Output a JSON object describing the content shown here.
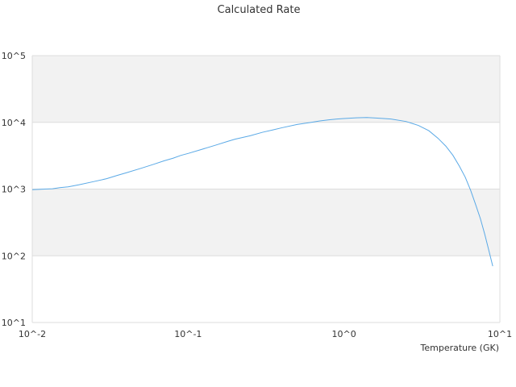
{
  "chart_data": {
    "type": "line",
    "title": "Calculated Rate",
    "xlabel": "Temperature (GK)",
    "ylabel": "",
    "x_scale": "log",
    "y_scale": "log",
    "xlim": [
      0.01,
      10
    ],
    "ylim": [
      10,
      100000
    ],
    "x_tick_labels": [
      "10^-2",
      "10^-1",
      "10^0",
      "10^1"
    ],
    "y_tick_labels": [
      "10^5",
      "10^4",
      "10^3",
      "10^2",
      "10^1"
    ],
    "band_fill": "#f2f2f2",
    "line_color": "#5aa9e6",
    "grid": true,
    "legend": "none",
    "series": [
      {
        "x": [
          0.01,
          0.011,
          0.012,
          0.0135,
          0.015,
          0.017,
          0.02,
          0.025,
          0.03,
          0.035,
          0.04,
          0.05,
          0.06,
          0.07,
          0.08,
          0.09,
          0.1,
          0.12,
          0.15,
          0.18,
          0.2,
          0.25,
          0.3,
          0.35,
          0.4,
          0.5,
          0.6,
          0.7,
          0.8,
          0.9,
          1.0,
          1.2,
          1.4,
          1.6,
          1.8,
          2.0,
          2.5,
          3.0,
          3.5,
          4.0,
          4.5,
          5.0,
          5.5,
          6.0,
          6.5,
          7.0,
          7.5,
          8.0,
          8.5,
          9.0
        ],
        "y": [
          980,
          990,
          1000,
          1010,
          1050,
          1080,
          1160,
          1300,
          1430,
          1600,
          1750,
          2050,
          2350,
          2650,
          2900,
          3200,
          3420,
          3880,
          4550,
          5200,
          5600,
          6300,
          7100,
          7700,
          8300,
          9300,
          9900,
          10500,
          10900,
          11200,
          11400,
          11700,
          11800,
          11600,
          11400,
          11200,
          10300,
          9000,
          7500,
          5800,
          4400,
          3200,
          2200,
          1500,
          950,
          580,
          360,
          210,
          120,
          70
        ]
      }
    ]
  }
}
